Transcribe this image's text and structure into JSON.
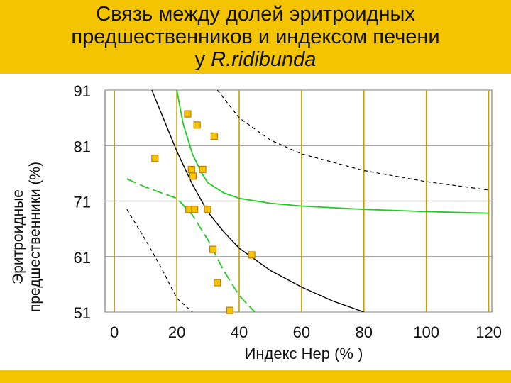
{
  "title": {
    "line1": "Связь между долей эритроидных",
    "line2": "предшественников    и индексом печени",
    "line3_prefix": "у ",
    "line3_species": "R.ridibunda"
  },
  "colors": {
    "band": "#f5c400",
    "grid_vertical": "#c8a000",
    "grid_horizontal": "#9a9a9a",
    "fit_curve": "#000000",
    "confidence_band": "#22cc22",
    "prediction_band": "#000000",
    "point_fill": "#f5c400",
    "point_stroke": "#c08000"
  },
  "chart_data": {
    "type": "scatter",
    "title": "Связь между долей эритроидных предшественников и индексом печени у R.ridibunda",
    "xlabel": "Индекс Hep (% )",
    "ylabel_line1": "Эритроидные",
    "ylabel_line2": "предшественники (%)",
    "xlim": [
      -3,
      121
    ],
    "ylim": [
      51,
      91
    ],
    "x_ticks": [
      "0",
      "20",
      "40",
      "60",
      "80",
      "100",
      "120"
    ],
    "y_ticks": [
      "51",
      "61",
      "71",
      "81",
      "91"
    ],
    "grid": true,
    "points": [
      {
        "x": 13,
        "y": 78.7
      },
      {
        "x": 23.5,
        "y": 86.7
      },
      {
        "x": 24.7,
        "y": 76.7
      },
      {
        "x": 25.2,
        "y": 75.5
      },
      {
        "x": 26.5,
        "y": 84.7
      },
      {
        "x": 28.3,
        "y": 76.7
      },
      {
        "x": 32,
        "y": 82.7
      },
      {
        "x": 23.9,
        "y": 69.5
      },
      {
        "x": 25.7,
        "y": 69.5
      },
      {
        "x": 29.9,
        "y": 69.5
      },
      {
        "x": 31.6,
        "y": 62.3
      },
      {
        "x": 44,
        "y": 61.3
      },
      {
        "x": 33,
        "y": 56.3
      },
      {
        "x": 37,
        "y": 51.3
      }
    ],
    "fit_curve": {
      "x": [
        12,
        16,
        20,
        25,
        30,
        35,
        40,
        50,
        60,
        70,
        80
      ],
      "y": [
        91,
        85.5,
        80,
        74,
        69,
        65.5,
        62.5,
        58.5,
        55.5,
        53,
        51
      ]
    },
    "confidence_band_upper": {
      "x": [
        20,
        22,
        25,
        28,
        30,
        35,
        40,
        50,
        60,
        80,
        100,
        120
      ],
      "y": [
        91,
        85,
        79.5,
        76,
        74.3,
        72.5,
        71.5,
        70.6,
        70.1,
        69.5,
        69.1,
        68.8
      ]
    },
    "confidence_band_lower": {
      "x": [
        4,
        10,
        15,
        20,
        25,
        30,
        35,
        40,
        45
      ],
      "y": [
        75,
        73.5,
        72.5,
        71.5,
        68.5,
        64,
        58.5,
        54,
        51
      ]
    },
    "prediction_band_upper": {
      "x": [
        33,
        40,
        50,
        60,
        80,
        100,
        120
      ],
      "y": [
        91,
        86,
        82,
        79.5,
        76.5,
        74.5,
        73
      ]
    },
    "prediction_band_lower": {
      "x": [
        4,
        10,
        15,
        20,
        25
      ],
      "y": [
        69.5,
        64,
        59,
        53.5,
        51
      ]
    }
  }
}
